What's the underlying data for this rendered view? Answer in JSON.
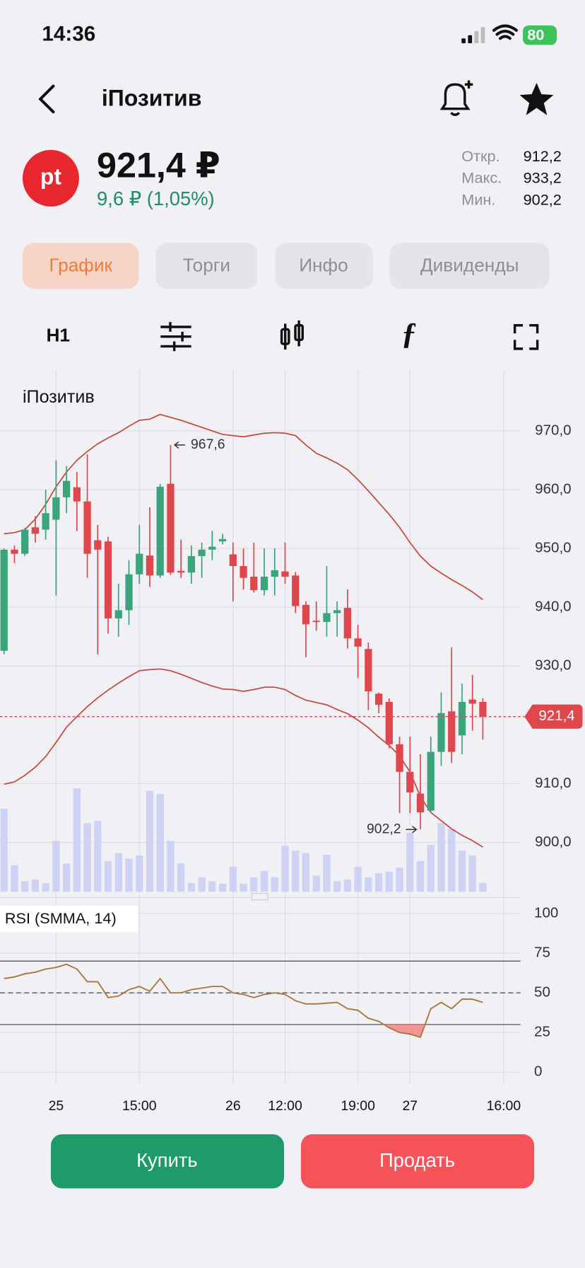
{
  "status_bar": {
    "time": "14:36",
    "battery": "80"
  },
  "header": {
    "title": "iПозитив"
  },
  "quote": {
    "logo": "pt",
    "price": "921,4 ₽",
    "change": "9,6 ₽ (1,05%)",
    "stats": [
      {
        "label": "Откр.",
        "value": "912,2"
      },
      {
        "label": "Макс.",
        "value": "933,2"
      },
      {
        "label": "Мин.",
        "value": "902,2"
      }
    ]
  },
  "tabs": [
    "График",
    "Торги",
    "Инфо",
    "Дивиденды"
  ],
  "toolbar": {
    "interval": "H1"
  },
  "chart_data": [
    {
      "type": "candlestick",
      "title": "iПозитив",
      "categories": [
        null,
        null,
        null,
        null,
        null,
        "25",
        null,
        null,
        null,
        null,
        null,
        null,
        null,
        "15:00",
        null,
        null,
        null,
        null,
        null,
        null,
        null,
        null,
        "26",
        null,
        null,
        null,
        null,
        "12:00",
        null,
        null,
        null,
        null,
        null,
        null,
        "19:00",
        null,
        null,
        null,
        null,
        "27",
        null,
        null,
        null,
        null,
        null,
        null,
        null,
        null,
        "16:00"
      ],
      "open": [
        932.6,
        949.8,
        949.1,
        953.6,
        953.2,
        954.9,
        958.7,
        960.4,
        958,
        951.4,
        951.2,
        938.1,
        939.5,
        945.6,
        948.8,
        945.4,
        961,
        946.2,
        945.9,
        948.7,
        949.8,
        951.2,
        949,
        947,
        945.2,
        942.9,
        945.2,
        946.1,
        945.4,
        940.4,
        937.7,
        937.5,
        939,
        939.9,
        934.7,
        932.9,
        925.3,
        923.9,
        916.7,
        912,
        908.3,
        905.4,
        915.4,
        922.3,
        918.2,
        924.3,
        923.9,
        null,
        null
      ],
      "high": [
        950,
        950.5,
        953.5,
        955.5,
        960,
        965,
        964,
        963,
        966,
        954,
        952,
        944,
        948,
        954,
        957,
        961,
        967.6,
        951.5,
        950.5,
        951,
        953,
        952.5,
        951,
        950,
        951,
        950,
        950,
        951,
        946,
        941,
        941,
        947,
        941,
        943,
        937,
        934,
        925.5,
        924.5,
        918,
        918,
        915,
        918,
        925.5,
        933.2,
        927,
        928.5,
        924.5,
        null,
        null
      ],
      "low": [
        932,
        947.5,
        948.7,
        951,
        951.5,
        942,
        956,
        953,
        945,
        932,
        935.5,
        935,
        937,
        944,
        943.5,
        945,
        945.5,
        945,
        944,
        945,
        948,
        950.7,
        941,
        943,
        942.5,
        942,
        942,
        944,
        939,
        931.5,
        936,
        935,
        935,
        933,
        928,
        922.5,
        922,
        916,
        905,
        905,
        902.2,
        905,
        913,
        913.5,
        915,
        919,
        917.5,
        null,
        null
      ],
      "close": [
        949.8,
        949.1,
        953.2,
        952.5,
        956,
        958.7,
        961.5,
        958,
        949.1,
        949.8,
        938.1,
        939.5,
        945.6,
        949.1,
        945.4,
        960.5,
        945.9,
        945.9,
        948.7,
        949.8,
        950.3,
        951.6,
        947,
        945,
        942.9,
        945.2,
        946.3,
        945.2,
        940.2,
        937.1,
        937.5,
        939,
        939.5,
        934.7,
        933.3,
        925.7,
        923.4,
        916.7,
        912,
        908.5,
        905.1,
        915.4,
        922,
        915.4,
        923.9,
        923.6,
        921.4,
        null,
        null
      ],
      "up_color": "#3aa57a",
      "down_color": "#e0474c",
      "ylim": [
        891.6,
        980.4
      ],
      "yticks": [
        {
          "value": 900,
          "label": "900,0"
        },
        {
          "value": 910,
          "label": "910,0"
        },
        {
          "value": 930,
          "label": "930,0"
        },
        {
          "value": 940,
          "label": "940,0"
        },
        {
          "value": 950,
          "label": "950,0"
        },
        {
          "value": 960,
          "label": "960,0"
        },
        {
          "value": 970,
          "label": "970,0"
        }
      ],
      "grid": true,
      "bands": {
        "color": "#c8463c",
        "upper": [
          952.5,
          952.7,
          953.2,
          955,
          957.5,
          960.5,
          963,
          965,
          966.5,
          967.8,
          968.8,
          969.7,
          970.8,
          971.8,
          972,
          972.8,
          972.3,
          971.8,
          971.2,
          970.6,
          970,
          969.4,
          969.2,
          969,
          969.3,
          969.6,
          969.7,
          969.6,
          969.2,
          967.6,
          966.2,
          965.4,
          964.5,
          963.4,
          961.7,
          959.8,
          957.8,
          955.8,
          953.6,
          951,
          948.7,
          947,
          945.8,
          944.7,
          943.7,
          942.6,
          941.3,
          null,
          null
        ],
        "lower": [
          909.9,
          910.3,
          911.4,
          912.8,
          914.6,
          917,
          919.6,
          921.4,
          923.1,
          924.6,
          925.9,
          927.1,
          928.2,
          929.2,
          929.4,
          929.5,
          929.2,
          928.6,
          927.9,
          927.2,
          926.6,
          926.1,
          926,
          925.7,
          926,
          926.4,
          926.4,
          926,
          925,
          924.2,
          923.8,
          923.4,
          922.6,
          921.9,
          920.8,
          919.5,
          917.9,
          916.5,
          914.7,
          912,
          907.8,
          905.1,
          903.7,
          902.3,
          901.2,
          900.3,
          899.2,
          null,
          null
        ]
      },
      "volume": {
        "color": "#c6cbf5",
        "values": [
          103,
          33,
          13,
          15,
          11,
          63,
          35,
          128,
          85,
          88,
          38,
          48,
          41,
          45,
          125,
          121,
          63,
          35,
          11,
          18,
          13,
          10,
          31,
          10,
          18,
          26,
          18,
          57,
          51,
          48,
          20,
          46,
          13,
          15,
          31,
          18,
          23,
          25,
          30,
          73,
          38,
          58,
          85,
          78,
          51,
          45,
          11,
          null,
          null
        ]
      },
      "last_label": "921,4",
      "last_color": "#e0474c",
      "max_label": "967,6",
      "min_label": "902,2"
    },
    {
      "type": "line",
      "title": "RSI (SMMA, 14)",
      "color": "#a8763a",
      "values": [
        59,
        60,
        62,
        63,
        65,
        66,
        68,
        65,
        57,
        57,
        47,
        48,
        52,
        54,
        51,
        59,
        50,
        50,
        52,
        53,
        54,
        54,
        50,
        49,
        47,
        49,
        50,
        49,
        45,
        43,
        43,
        43.5,
        44,
        40,
        39,
        34,
        32,
        28,
        25,
        24,
        22,
        40,
        44,
        40,
        46,
        46,
        44,
        null,
        null
      ],
      "ylim": [
        -7,
        105
      ],
      "yticks": [
        0,
        25,
        50,
        75,
        100
      ],
      "levels": [
        70,
        50,
        30
      ],
      "fill_color": "#f28b8b"
    }
  ],
  "buttons": {
    "buy": "Купить",
    "sell": "Продать"
  }
}
